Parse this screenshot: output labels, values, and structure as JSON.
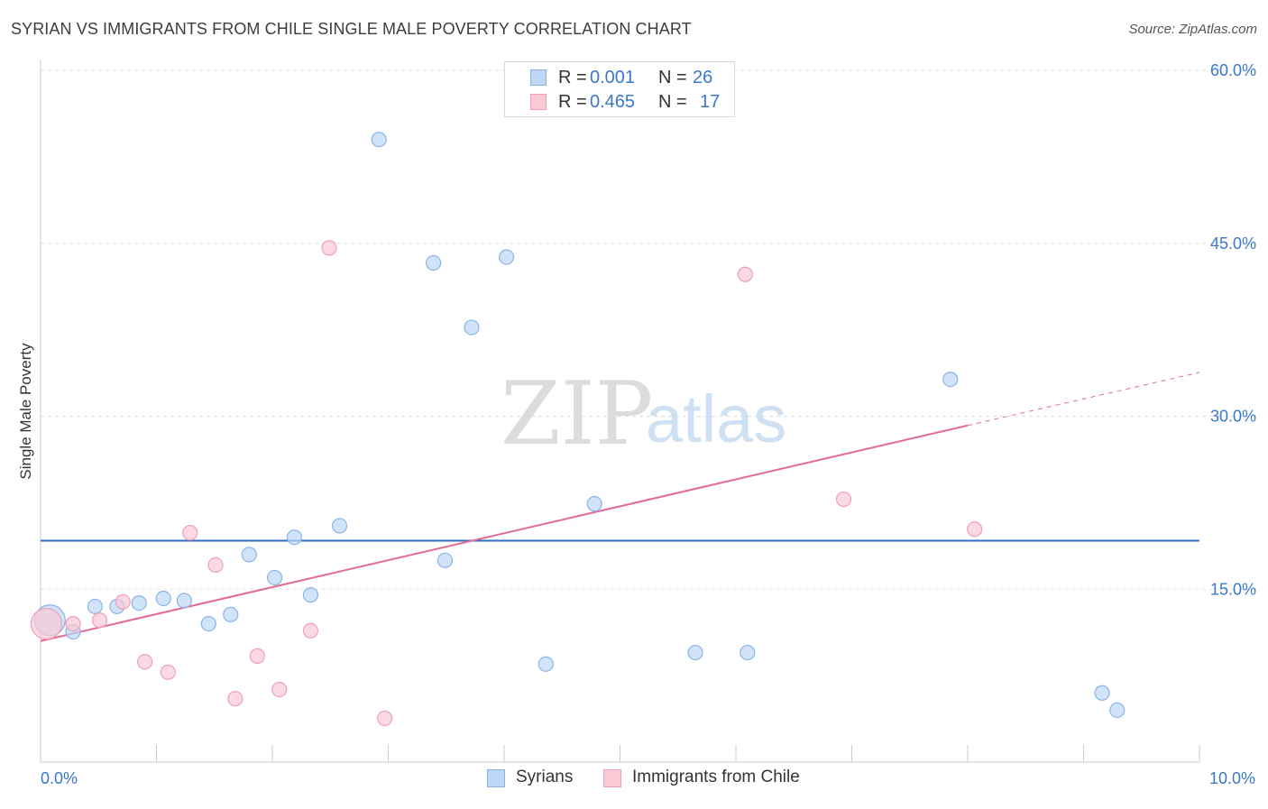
{
  "title": "SYRIAN VS IMMIGRANTS FROM CHILE SINGLE MALE POVERTY CORRELATION CHART",
  "source": "Source: ZipAtlas.com",
  "watermark": {
    "zip": "ZIP",
    "atlas": "atlas"
  },
  "legend_top": {
    "rows": [
      {
        "r_label": "R =",
        "r_value": "0.001",
        "n_label": "N =",
        "n_value": "26"
      },
      {
        "r_label": "R =",
        "r_value": "0.465",
        "n_label": "N =",
        "n_value": "17"
      }
    ]
  },
  "legend_bottom": {
    "syrians": "Syrians",
    "chile": "Immigrants from Chile"
  },
  "colors": {
    "syrians_fill": "#bdd7f5",
    "syrians_stroke": "#8ab4e8",
    "syrians_line": "#2f6fc0",
    "chile_fill": "#f9c9d6",
    "chile_stroke": "#ef9fb7",
    "chile_line": "#e46a95",
    "tick_label": "#3b78c9",
    "grid": "#dddddd"
  },
  "chart_data": {
    "type": "scatter",
    "title": "SYRIAN VS IMMIGRANTS FROM CHILE SINGLE MALE POVERTY CORRELATION CHART",
    "xlabel": "",
    "ylabel": "Single Male Poverty",
    "xlim": [
      0,
      10
    ],
    "ylim": [
      0,
      60
    ],
    "x_tick_labels": [
      {
        "value": 0,
        "label": "0.0%"
      },
      {
        "value": 10,
        "label": "10.0%"
      }
    ],
    "y_tick_labels": [
      {
        "value": 15,
        "label": "15.0%"
      },
      {
        "value": 30,
        "label": "30.0%"
      },
      {
        "value": 45,
        "label": "45.0%"
      },
      {
        "value": 60,
        "label": "60.0%"
      }
    ],
    "series": [
      {
        "name": "Syrians",
        "r": 0.001,
        "n": 26,
        "points": [
          {
            "x": 0.08,
            "y": 12.3,
            "size": "large"
          },
          {
            "x": 0.28,
            "y": 11.3
          },
          {
            "x": 0.47,
            "y": 13.5
          },
          {
            "x": 0.66,
            "y": 13.5
          },
          {
            "x": 0.85,
            "y": 13.8
          },
          {
            "x": 1.06,
            "y": 14.2
          },
          {
            "x": 1.24,
            "y": 14.0
          },
          {
            "x": 1.45,
            "y": 12.0
          },
          {
            "x": 1.64,
            "y": 12.8
          },
          {
            "x": 1.8,
            "y": 18.0
          },
          {
            "x": 2.02,
            "y": 16.0
          },
          {
            "x": 2.19,
            "y": 19.5
          },
          {
            "x": 2.33,
            "y": 14.5
          },
          {
            "x": 2.58,
            "y": 20.5
          },
          {
            "x": 2.92,
            "y": 54.0
          },
          {
            "x": 3.39,
            "y": 43.3
          },
          {
            "x": 3.49,
            "y": 17.5
          },
          {
            "x": 3.72,
            "y": 37.7
          },
          {
            "x": 4.02,
            "y": 43.8
          },
          {
            "x": 4.36,
            "y": 8.5
          },
          {
            "x": 4.78,
            "y": 22.4
          },
          {
            "x": 5.65,
            "y": 9.5
          },
          {
            "x": 6.1,
            "y": 9.5
          },
          {
            "x": 7.85,
            "y": 33.2
          },
          {
            "x": 9.16,
            "y": 6.0
          },
          {
            "x": 9.29,
            "y": 4.5
          }
        ],
        "trendline": {
          "x": [
            0,
            10
          ],
          "y": [
            19.2,
            19.2
          ]
        }
      },
      {
        "name": "Immigrants from Chile",
        "r": 0.465,
        "n": 17,
        "points": [
          {
            "x": 0.05,
            "y": 12.0,
            "size": "large"
          },
          {
            "x": 0.28,
            "y": 12.0
          },
          {
            "x": 0.51,
            "y": 12.3
          },
          {
            "x": 0.71,
            "y": 13.9
          },
          {
            "x": 0.9,
            "y": 8.7
          },
          {
            "x": 1.1,
            "y": 7.8
          },
          {
            "x": 1.29,
            "y": 19.9
          },
          {
            "x": 1.51,
            "y": 17.1
          },
          {
            "x": 1.68,
            "y": 5.5
          },
          {
            "x": 1.87,
            "y": 9.2
          },
          {
            "x": 2.06,
            "y": 6.3
          },
          {
            "x": 2.33,
            "y": 11.4
          },
          {
            "x": 2.49,
            "y": 44.6
          },
          {
            "x": 2.97,
            "y": 3.8
          },
          {
            "x": 6.08,
            "y": 42.3
          },
          {
            "x": 6.93,
            "y": 22.8
          },
          {
            "x": 8.06,
            "y": 20.2
          }
        ],
        "trendline": {
          "x": [
            0,
            8.0
          ],
          "y": [
            10.5,
            29.2
          ]
        },
        "trendline_dashed": {
          "x": [
            8.0,
            10.0
          ],
          "y": [
            29.2,
            33.8
          ]
        }
      }
    ]
  }
}
